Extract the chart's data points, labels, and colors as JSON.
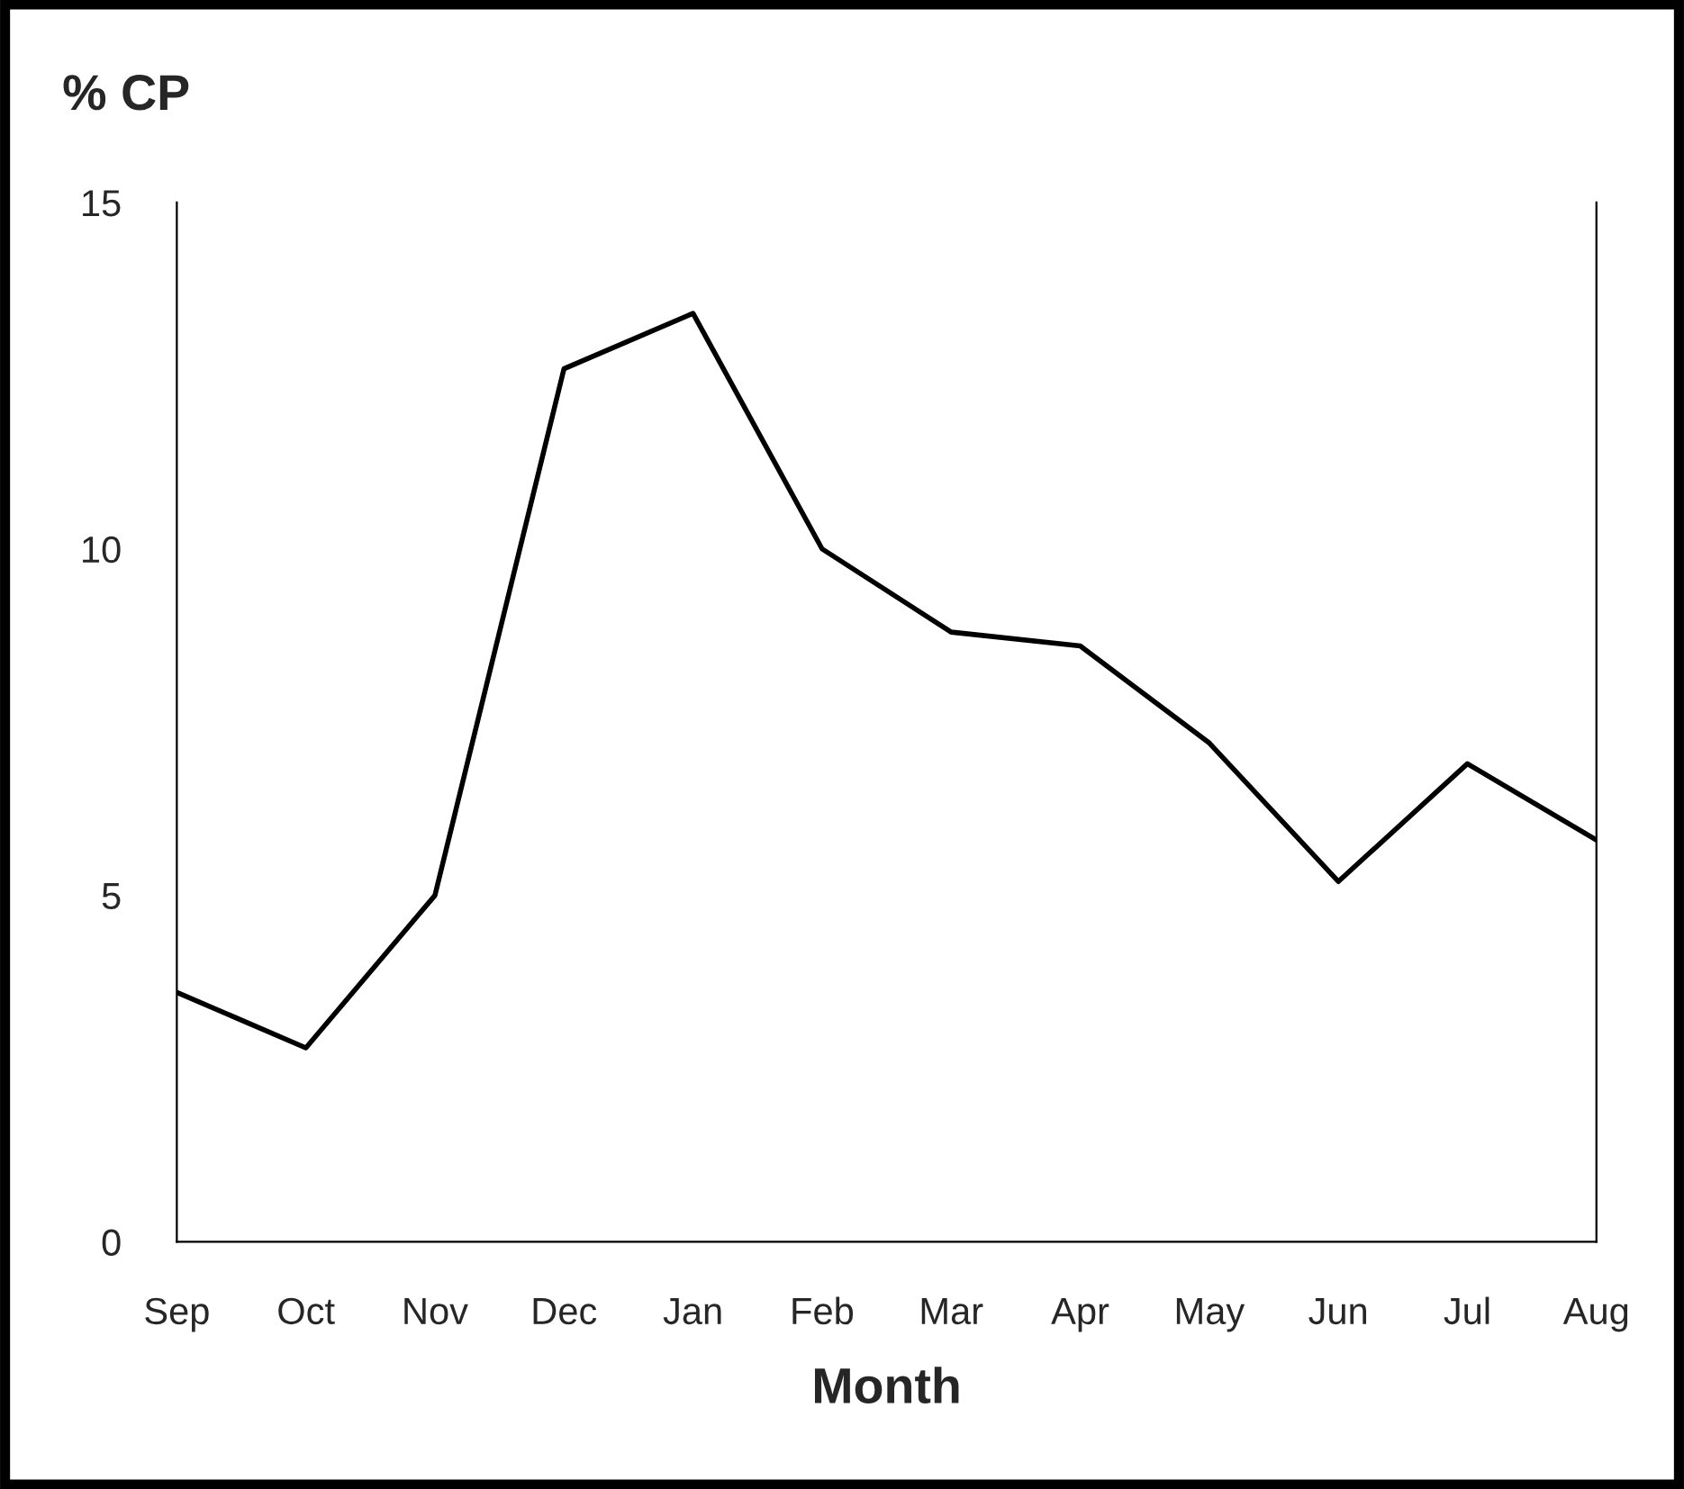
{
  "chart_data": {
    "type": "line",
    "ylabel": "% CP",
    "xlabel": "Month",
    "categories": [
      "Sep",
      "Oct",
      "Nov",
      "Dec",
      "Jan",
      "Feb",
      "Mar",
      "Apr",
      "May",
      "Jun",
      "Jul",
      "Aug"
    ],
    "series": [
      {
        "color": "#000000",
        "values": [
          3.6,
          2.8,
          5.0,
          12.6,
          13.4,
          10.0,
          8.8,
          8.6,
          7.2,
          5.2,
          6.9,
          5.8
        ]
      }
    ],
    "ylim": [
      0,
      15
    ],
    "yticks": [
      0,
      5,
      10,
      15
    ],
    "grid": false,
    "legend": false,
    "marker": "none",
    "line_style": "solid"
  }
}
